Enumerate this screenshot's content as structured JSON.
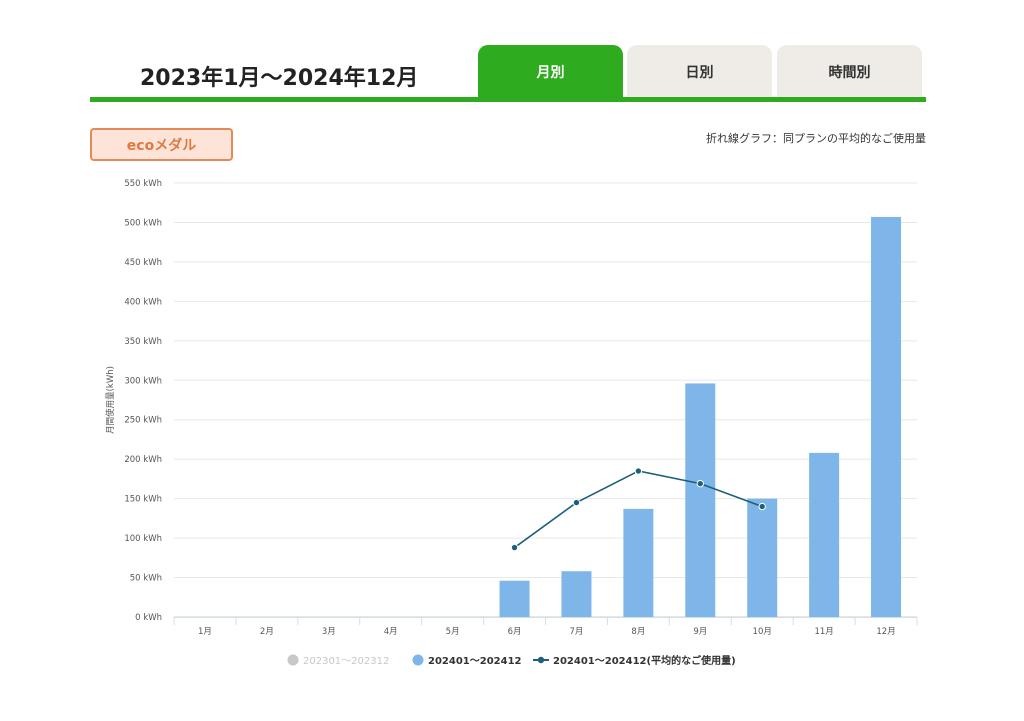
{
  "header": {
    "period_title": "2023年1月〜2024年12月",
    "tabs": [
      {
        "label": "月別",
        "active": true
      },
      {
        "label": "日別",
        "active": false
      },
      {
        "label": "時間別",
        "active": false
      }
    ]
  },
  "badge": {
    "label": "ecoメダル"
  },
  "note": "折れ線グラフ：同プランの平均的なご使用量",
  "colors": {
    "accent": "#2eab1e",
    "bar": "#7fb6ea",
    "line": "#1d5f7c",
    "prev_year": "#c8c8c8",
    "badge_border": "#e58a57"
  },
  "chart_data": {
    "type": "bar",
    "categories": [
      "1月",
      "2月",
      "3月",
      "4月",
      "5月",
      "6月",
      "7月",
      "8月",
      "9月",
      "10月",
      "11月",
      "12月"
    ],
    "ylabel": "月間使用量(kWh)",
    "ylim": [
      0,
      550
    ],
    "yticks": [
      0,
      50,
      100,
      150,
      200,
      250,
      300,
      350,
      400,
      450,
      500,
      550
    ],
    "ytick_suffix": " kWh",
    "grid": true,
    "legend_position": "bottom",
    "series": [
      {
        "name": "202301〜202312",
        "kind": "bar",
        "values": [
          0,
          0,
          0,
          0,
          0,
          0,
          0,
          0,
          0,
          0,
          0,
          0
        ]
      },
      {
        "name": "202401〜202412",
        "kind": "bar",
        "values": [
          0,
          0,
          0,
          0,
          0,
          46,
          58,
          137,
          296,
          150,
          208,
          507
        ]
      },
      {
        "name": "202401〜202412(平均的なご使用量)",
        "kind": "line",
        "values": [
          null,
          null,
          null,
          null,
          null,
          88,
          145,
          185,
          169,
          140,
          null,
          null
        ]
      }
    ]
  }
}
